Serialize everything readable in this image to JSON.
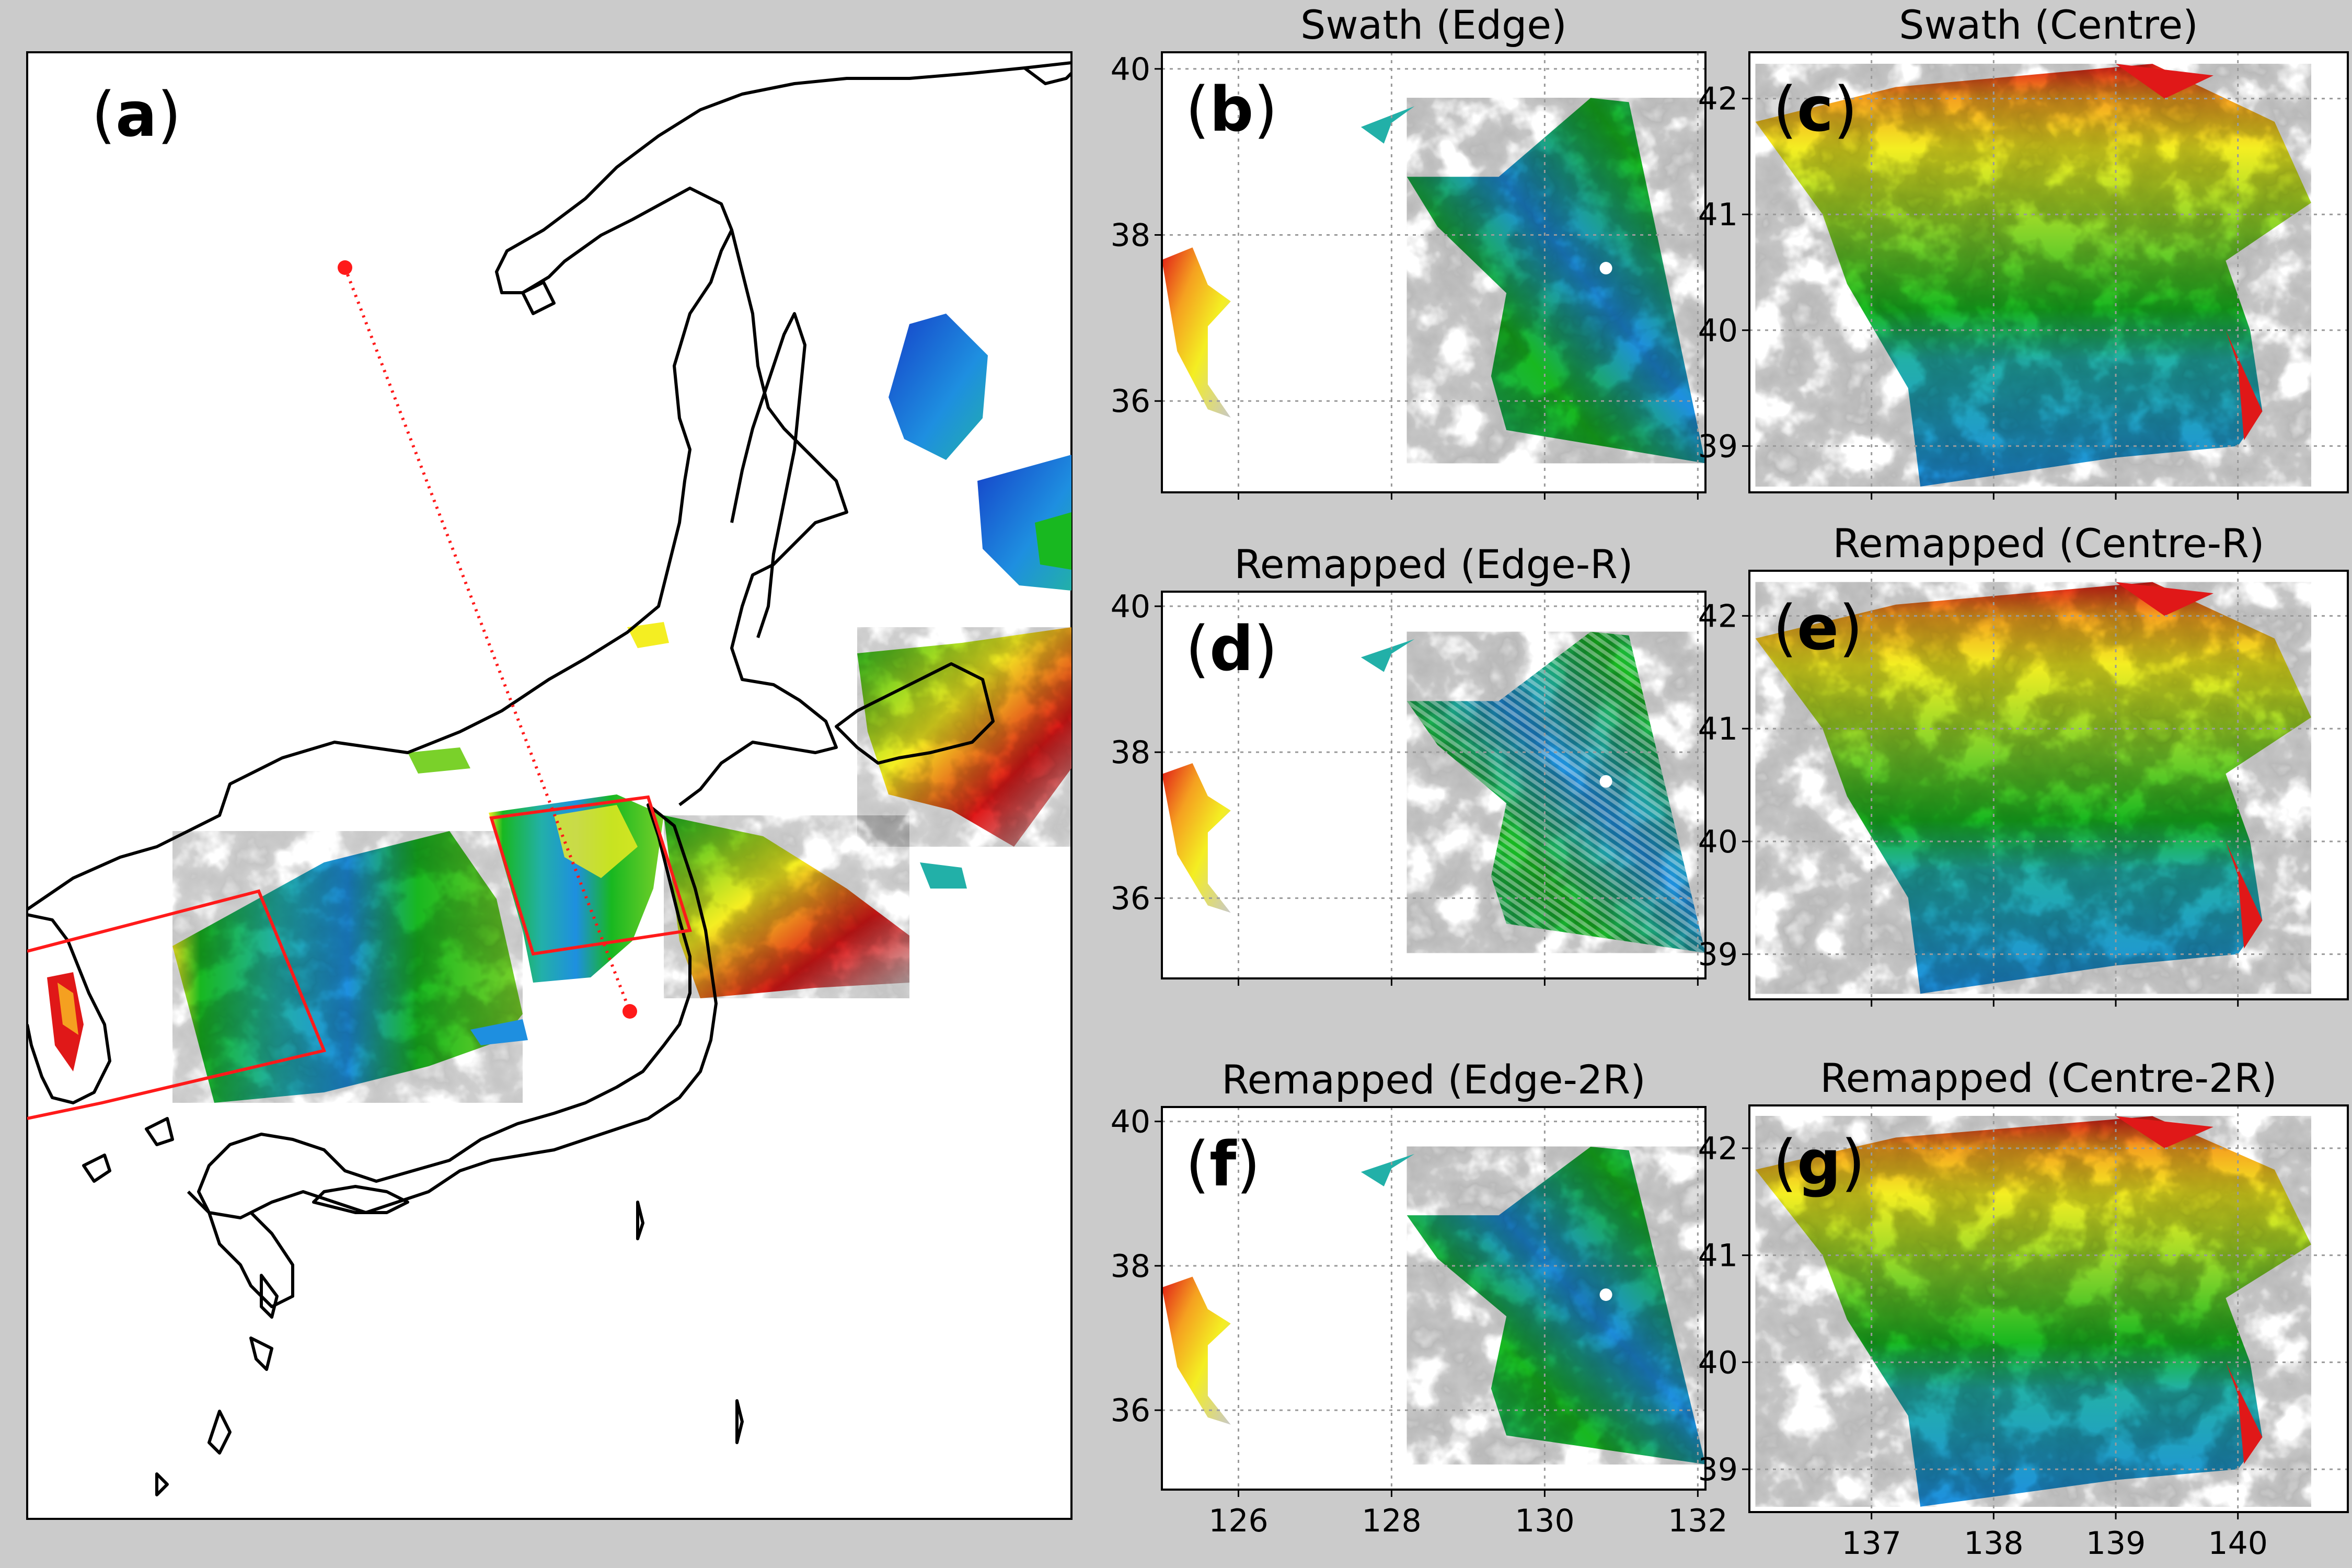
{
  "figure": {
    "panels": [
      {
        "id": "a",
        "label": "a"
      },
      {
        "id": "b",
        "label": "b",
        "title": "Swath (Edge)"
      },
      {
        "id": "c",
        "label": "c",
        "title": "Swath (Centre)"
      },
      {
        "id": "d",
        "label": "d",
        "title": "Remapped (Edge-R)"
      },
      {
        "id": "e",
        "label": "e",
        "title": "Remapped (Centre-R)"
      },
      {
        "id": "f",
        "label": "f",
        "title": "Remapped (Edge-2R)"
      },
      {
        "id": "g",
        "label": "g",
        "title": "Remapped (Centre-2R)"
      }
    ]
  },
  "axes": {
    "edge_lat_ticks": [
      "40",
      "38",
      "36"
    ],
    "edge_lon_ticks": [
      "126",
      "128",
      "130",
      "132"
    ],
    "centre_lat_ticks": [
      "42",
      "41",
      "40",
      "39"
    ],
    "centre_lon_ticks": [
      "137",
      "138",
      "139",
      "140"
    ],
    "edge_lat_range": [
      34.9,
      40.2
    ],
    "edge_lon_range": [
      125.0,
      132.1
    ],
    "centre_lat_range": [
      38.6,
      42.4
    ],
    "centre_lon_range": [
      136.0,
      140.9
    ]
  },
  "colors": {
    "background": "#cbcbcb",
    "colormap": [
      "#1540c8",
      "#1e8fe0",
      "#22b0a8",
      "#18b820",
      "#7ad12a",
      "#f4ee22",
      "#f5a020",
      "#e01818",
      "#c8c8c8"
    ],
    "box": "#ff1a1a",
    "coastline": "#000000"
  },
  "icons": {
    "track_endpoint": "red-dot-marker",
    "swath_box": "red-rectangle"
  }
}
